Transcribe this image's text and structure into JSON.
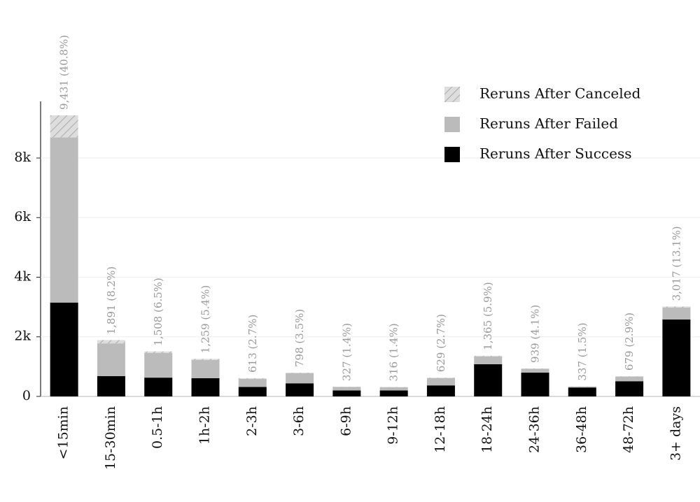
{
  "chart_data": {
    "type": "stacked_bar",
    "categories": [
      "<15min",
      "15-30min",
      "0.5-1h",
      "1h-2h",
      "2-3h",
      "3-6h",
      "6-9h",
      "9-12h",
      "12-18h",
      "18-24h",
      "24-36h",
      "36-48h",
      "48-72h",
      "3+ days"
    ],
    "series": [
      {
        "name": "Reruns After Success",
        "color": "#000000",
        "values": [
          3150,
          680,
          630,
          610,
          320,
          440,
          200,
          200,
          370,
          1080,
          800,
          300,
          510,
          2580
        ]
      },
      {
        "name": "Reruns After Failed",
        "color": "#bbbbbb",
        "values": [
          5540,
          1100,
          825,
          610,
          270,
          340,
          115,
          105,
          240,
          260,
          125,
          30,
          155,
          400
        ]
      },
      {
        "name": "Reruns After Canceled",
        "color": "#dddddd",
        "hatch": true,
        "values": [
          741,
          111,
          53,
          39,
          23,
          18,
          12,
          11,
          19,
          25,
          14,
          7,
          14,
          37
        ]
      }
    ],
    "totals": [
      9431,
      1891,
      1508,
      1259,
      613,
      798,
      327,
      316,
      629,
      1365,
      939,
      337,
      679,
      3017
    ],
    "total_labels": [
      "9,431 (40.8%)",
      "1,891 (8.2%)",
      "1,508 (6.5%)",
      "1,259 (5.4%)",
      "613 (2.7%)",
      "798 (3.5%)",
      "327 (1.4%)",
      "316 (1.4%)",
      "629 (2.7%)",
      "1,365 (5.9%)",
      "939 (4.1%)",
      "337 (1.5%)",
      "679 (2.9%)",
      "3,017 (13.1%)"
    ],
    "ylim": [
      0,
      9900
    ],
    "yticks": [
      0,
      {
        "value": 2000,
        "label": "2k"
      },
      {
        "value": 4000,
        "label": "4k"
      },
      {
        "value": 6000,
        "label": "6k"
      },
      {
        "value": 8000,
        "label": "8k"
      }
    ],
    "grid": true,
    "legend": "upper right"
  }
}
